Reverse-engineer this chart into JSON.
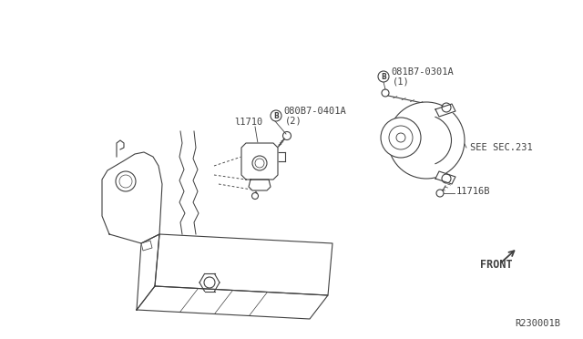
{
  "bg_color": "#ffffff",
  "line_color": "#404040",
  "text_color": "#404040",
  "diagram_id": "R230001B",
  "labels": {
    "front": "FRONT",
    "part1": "11716B",
    "part2": "SEE SEC.231",
    "part3": "l1710",
    "part4b": "B",
    "part4t": "080B7-0401A",
    "part4n": "(2)",
    "part5b": "B",
    "part5t": "081B7-0301A",
    "part5n": "(1)"
  },
  "font_size": 7.5
}
